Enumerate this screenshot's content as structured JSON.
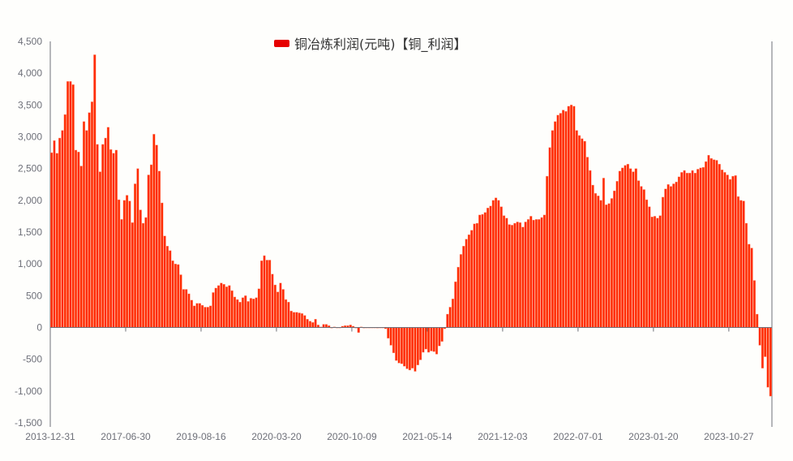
{
  "legend": {
    "label": "铜冶炼利润(元吨)【铜_利润】",
    "color": "#e60000"
  },
  "colors": {
    "bar": "#ff2a00",
    "bar_edge": "#ff9a80",
    "axis": "#6e7079"
  },
  "chart_data": {
    "type": "bar",
    "title": "",
    "xlabel": "",
    "ylabel": "",
    "legend": [
      "铜冶炼利润(元吨)【铜_利润】"
    ],
    "legend_position": "top-center",
    "grid": false,
    "ylim": [
      -1500,
      4500
    ],
    "yticks": [
      4500,
      4000,
      3500,
      3000,
      2500,
      2000,
      1500,
      1000,
      500,
      0,
      -500,
      -1000,
      -1500
    ],
    "ytick_labels": [
      "4,500",
      "4,000",
      "3,500",
      "3,000",
      "2,500",
      "2,000",
      "1,500",
      "1,000",
      "500",
      "0",
      "-500",
      "-1,000",
      "-1,500"
    ],
    "xtick_labels": [
      "2013-12-31",
      "2017-06-30",
      "2019-08-16",
      "2020-03-20",
      "2020-10-09",
      "2021-05-14",
      "2021-12-03",
      "2022-07-01",
      "2023-01-20",
      "2023-10-27"
    ],
    "xtick_positions": [
      0,
      28,
      56,
      84,
      112,
      140,
      168,
      196,
      224,
      252
    ],
    "series": [
      {
        "name": "铜冶炼利润(元吨)【铜_利润】",
        "values": [
          2750,
          2940,
          2740,
          2980,
          3100,
          3350,
          3870,
          3870,
          3820,
          2790,
          2760,
          2540,
          3240,
          3100,
          3380,
          3550,
          4290,
          2880,
          2450,
          2880,
          2980,
          3150,
          2800,
          2740,
          2790,
          2010,
          1700,
          2000,
          2080,
          1990,
          1650,
          2260,
          2500,
          1850,
          1640,
          1730,
          2400,
          2560,
          3040,
          2870,
          2460,
          1960,
          1440,
          1280,
          1210,
          1050,
          1000,
          990,
          830,
          600,
          600,
          530,
          430,
          340,
          380,
          380,
          350,
          320,
          320,
          340,
          550,
          620,
          660,
          700,
          680,
          640,
          660,
          580,
          480,
          440,
          400,
          470,
          500,
          410,
          460,
          450,
          470,
          610,
          1050,
          1130,
          1060,
          1060,
          840,
          670,
          560,
          700,
          600,
          440,
          400,
          260,
          240,
          240,
          230,
          220,
          190,
          130,
          100,
          80,
          130,
          40,
          10,
          50,
          50,
          30,
          -10,
          10,
          0,
          0,
          20,
          30,
          30,
          40,
          20,
          -10,
          -80,
          10,
          -10,
          0,
          -5,
          0,
          0,
          -10,
          0,
          -5,
          -20,
          -170,
          -280,
          -400,
          -520,
          -560,
          -570,
          -610,
          -650,
          -670,
          -640,
          -690,
          -590,
          -510,
          -390,
          -340,
          -390,
          -370,
          -380,
          -420,
          -290,
          -220,
          -20,
          210,
          320,
          450,
          720,
          950,
          1150,
          1280,
          1390,
          1460,
          1530,
          1630,
          1640,
          1770,
          1780,
          1810,
          1880,
          1910,
          2000,
          2040,
          2000,
          1900,
          1760,
          1720,
          1620,
          1610,
          1640,
          1660,
          1650,
          1580,
          1660,
          1700,
          1750,
          1690,
          1700,
          1700,
          1730,
          1770,
          2380,
          2830,
          3100,
          3240,
          3340,
          3370,
          3420,
          3400,
          3480,
          3500,
          3480,
          3100,
          3020,
          2970,
          2930,
          2680,
          2470,
          2240,
          2110,
          2070,
          2000,
          2350,
          1930,
          1950,
          2030,
          2150,
          2300,
          2460,
          2510,
          2550,
          2570,
          2500,
          2450,
          2500,
          2310,
          2220,
          2170,
          2010,
          1900,
          1740,
          1750,
          1720,
          1760,
          2050,
          2180,
          2250,
          2220,
          2260,
          2290,
          2370,
          2440,
          2470,
          2430,
          2430,
          2470,
          2430,
          2490,
          2510,
          2520,
          2610,
          2710,
          2660,
          2640,
          2630,
          2570,
          2480,
          2440,
          2400,
          2330,
          2380,
          2390,
          2060,
          2000,
          1990,
          1640,
          1310,
          1250,
          740,
          210,
          -280,
          -640,
          -460,
          -940,
          -1080
        ]
      }
    ]
  }
}
